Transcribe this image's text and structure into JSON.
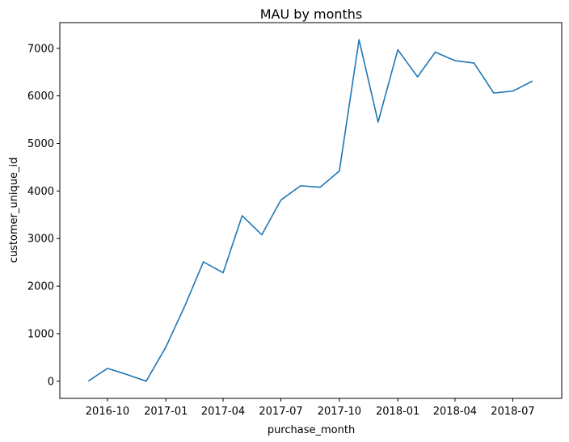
{
  "chart_data": {
    "type": "line",
    "title": "MAU by months",
    "xlabel": "purchase_month",
    "ylabel": "customer_unique_id",
    "x": [
      "2016-09",
      "2016-10",
      "2016-11",
      "2016-12",
      "2017-01",
      "2017-02",
      "2017-03",
      "2017-04",
      "2017-05",
      "2017-06",
      "2017-07",
      "2017-08",
      "2017-09",
      "2017-10",
      "2017-11",
      "2017-12",
      "2018-01",
      "2018-02",
      "2018-03",
      "2018-04",
      "2018-05",
      "2018-06",
      "2018-07",
      "2018-08"
    ],
    "series": [
      {
        "color": "#1f77b4",
        "values": [
          4,
          270,
          140,
          2,
          720,
          1620,
          2510,
          2280,
          3480,
          3080,
          3810,
          4110,
          4080,
          4420,
          7180,
          5450,
          6970,
          6400,
          6920,
          6740,
          6690,
          6060,
          6100,
          6310
        ]
      }
    ],
    "xticks": [
      "2016-10",
      "2017-01",
      "2017-04",
      "2017-07",
      "2017-10",
      "2018-01",
      "2018-04",
      "2018-07"
    ],
    "yticks": [
      0,
      1000,
      2000,
      3000,
      4000,
      5000,
      6000,
      7000
    ],
    "ylim": [
      -360,
      7540
    ],
    "xlim": [
      "2016-07-18",
      "2018-09-16"
    ],
    "grid": false
  }
}
